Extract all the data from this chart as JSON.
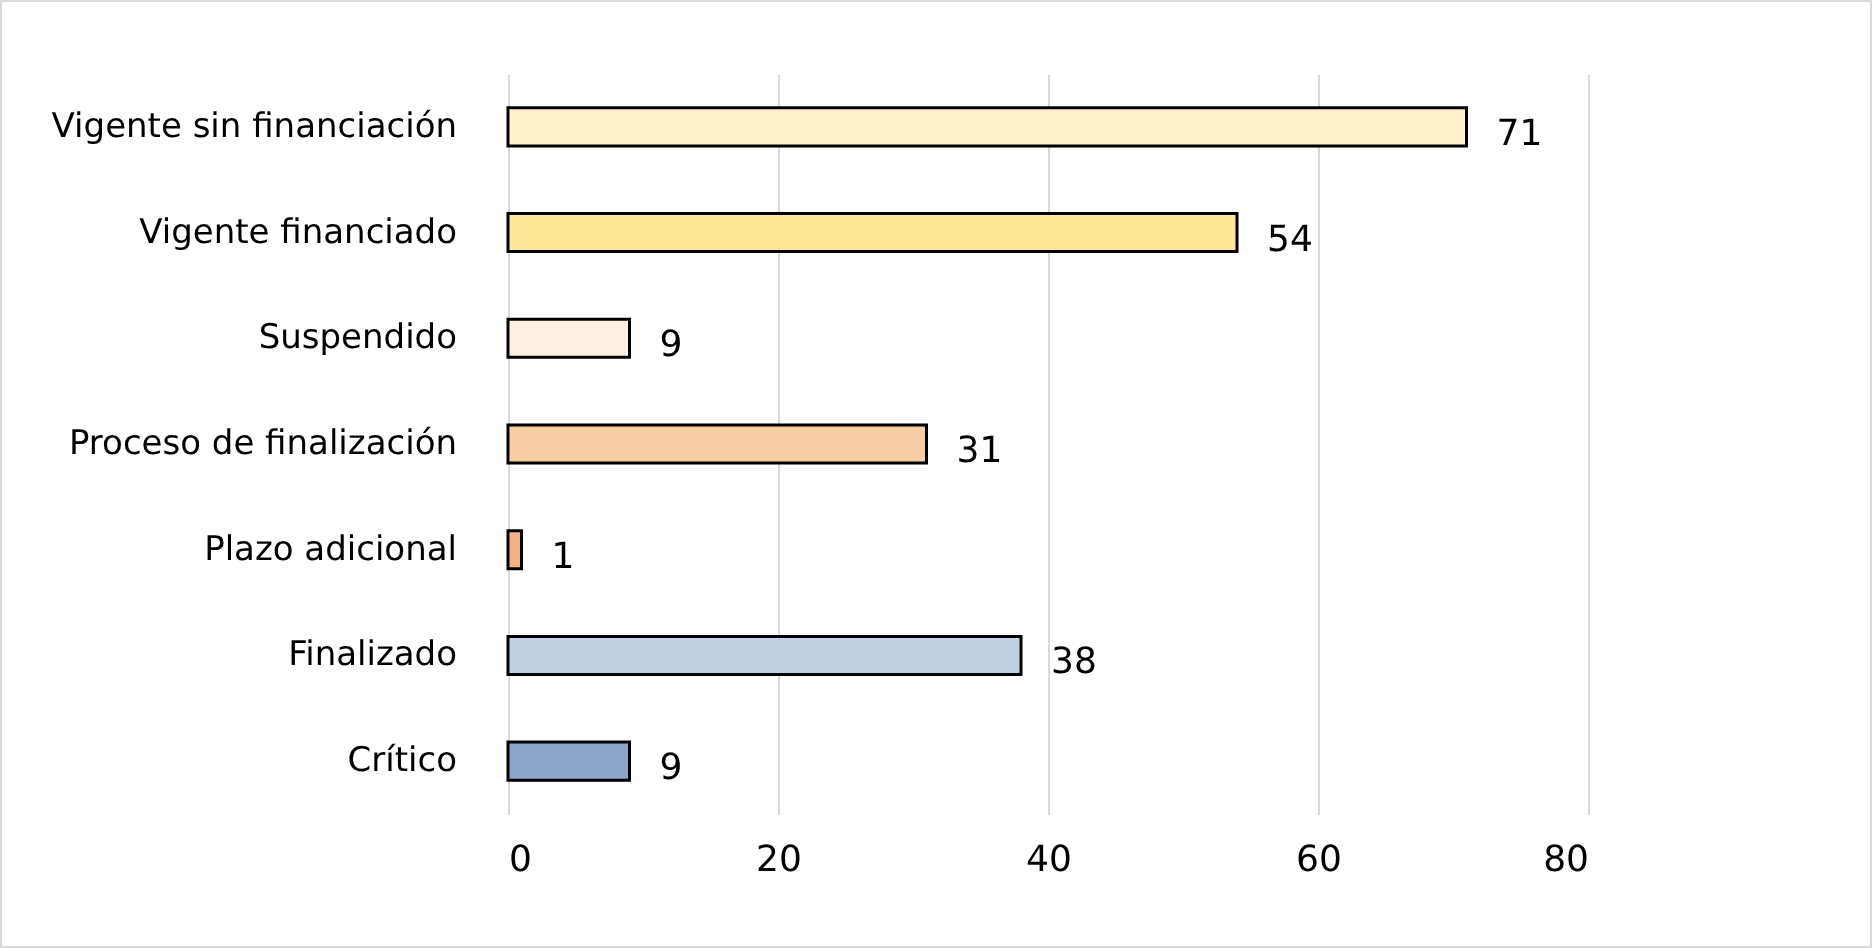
{
  "chart_data": {
    "type": "bar",
    "orientation": "horizontal",
    "categories": [
      "Vigente sin financiación",
      "Vigente financiado",
      "Suspendido",
      "Proceso de finalización",
      "Plazo adicional",
      "Finalizado",
      "Crítico"
    ],
    "values": [
      71,
      54,
      9,
      31,
      1,
      38,
      9
    ],
    "colors": [
      "#fff2cc",
      "#ffe699",
      "#fdf1e6",
      "#f8cfa4",
      "#f4b183",
      "#c0cfe2",
      "#8ba6c9"
    ],
    "xlim": [
      0,
      80
    ],
    "xticks": [
      0,
      20,
      40,
      60,
      80
    ],
    "grid": "x",
    "data_labels": true
  }
}
